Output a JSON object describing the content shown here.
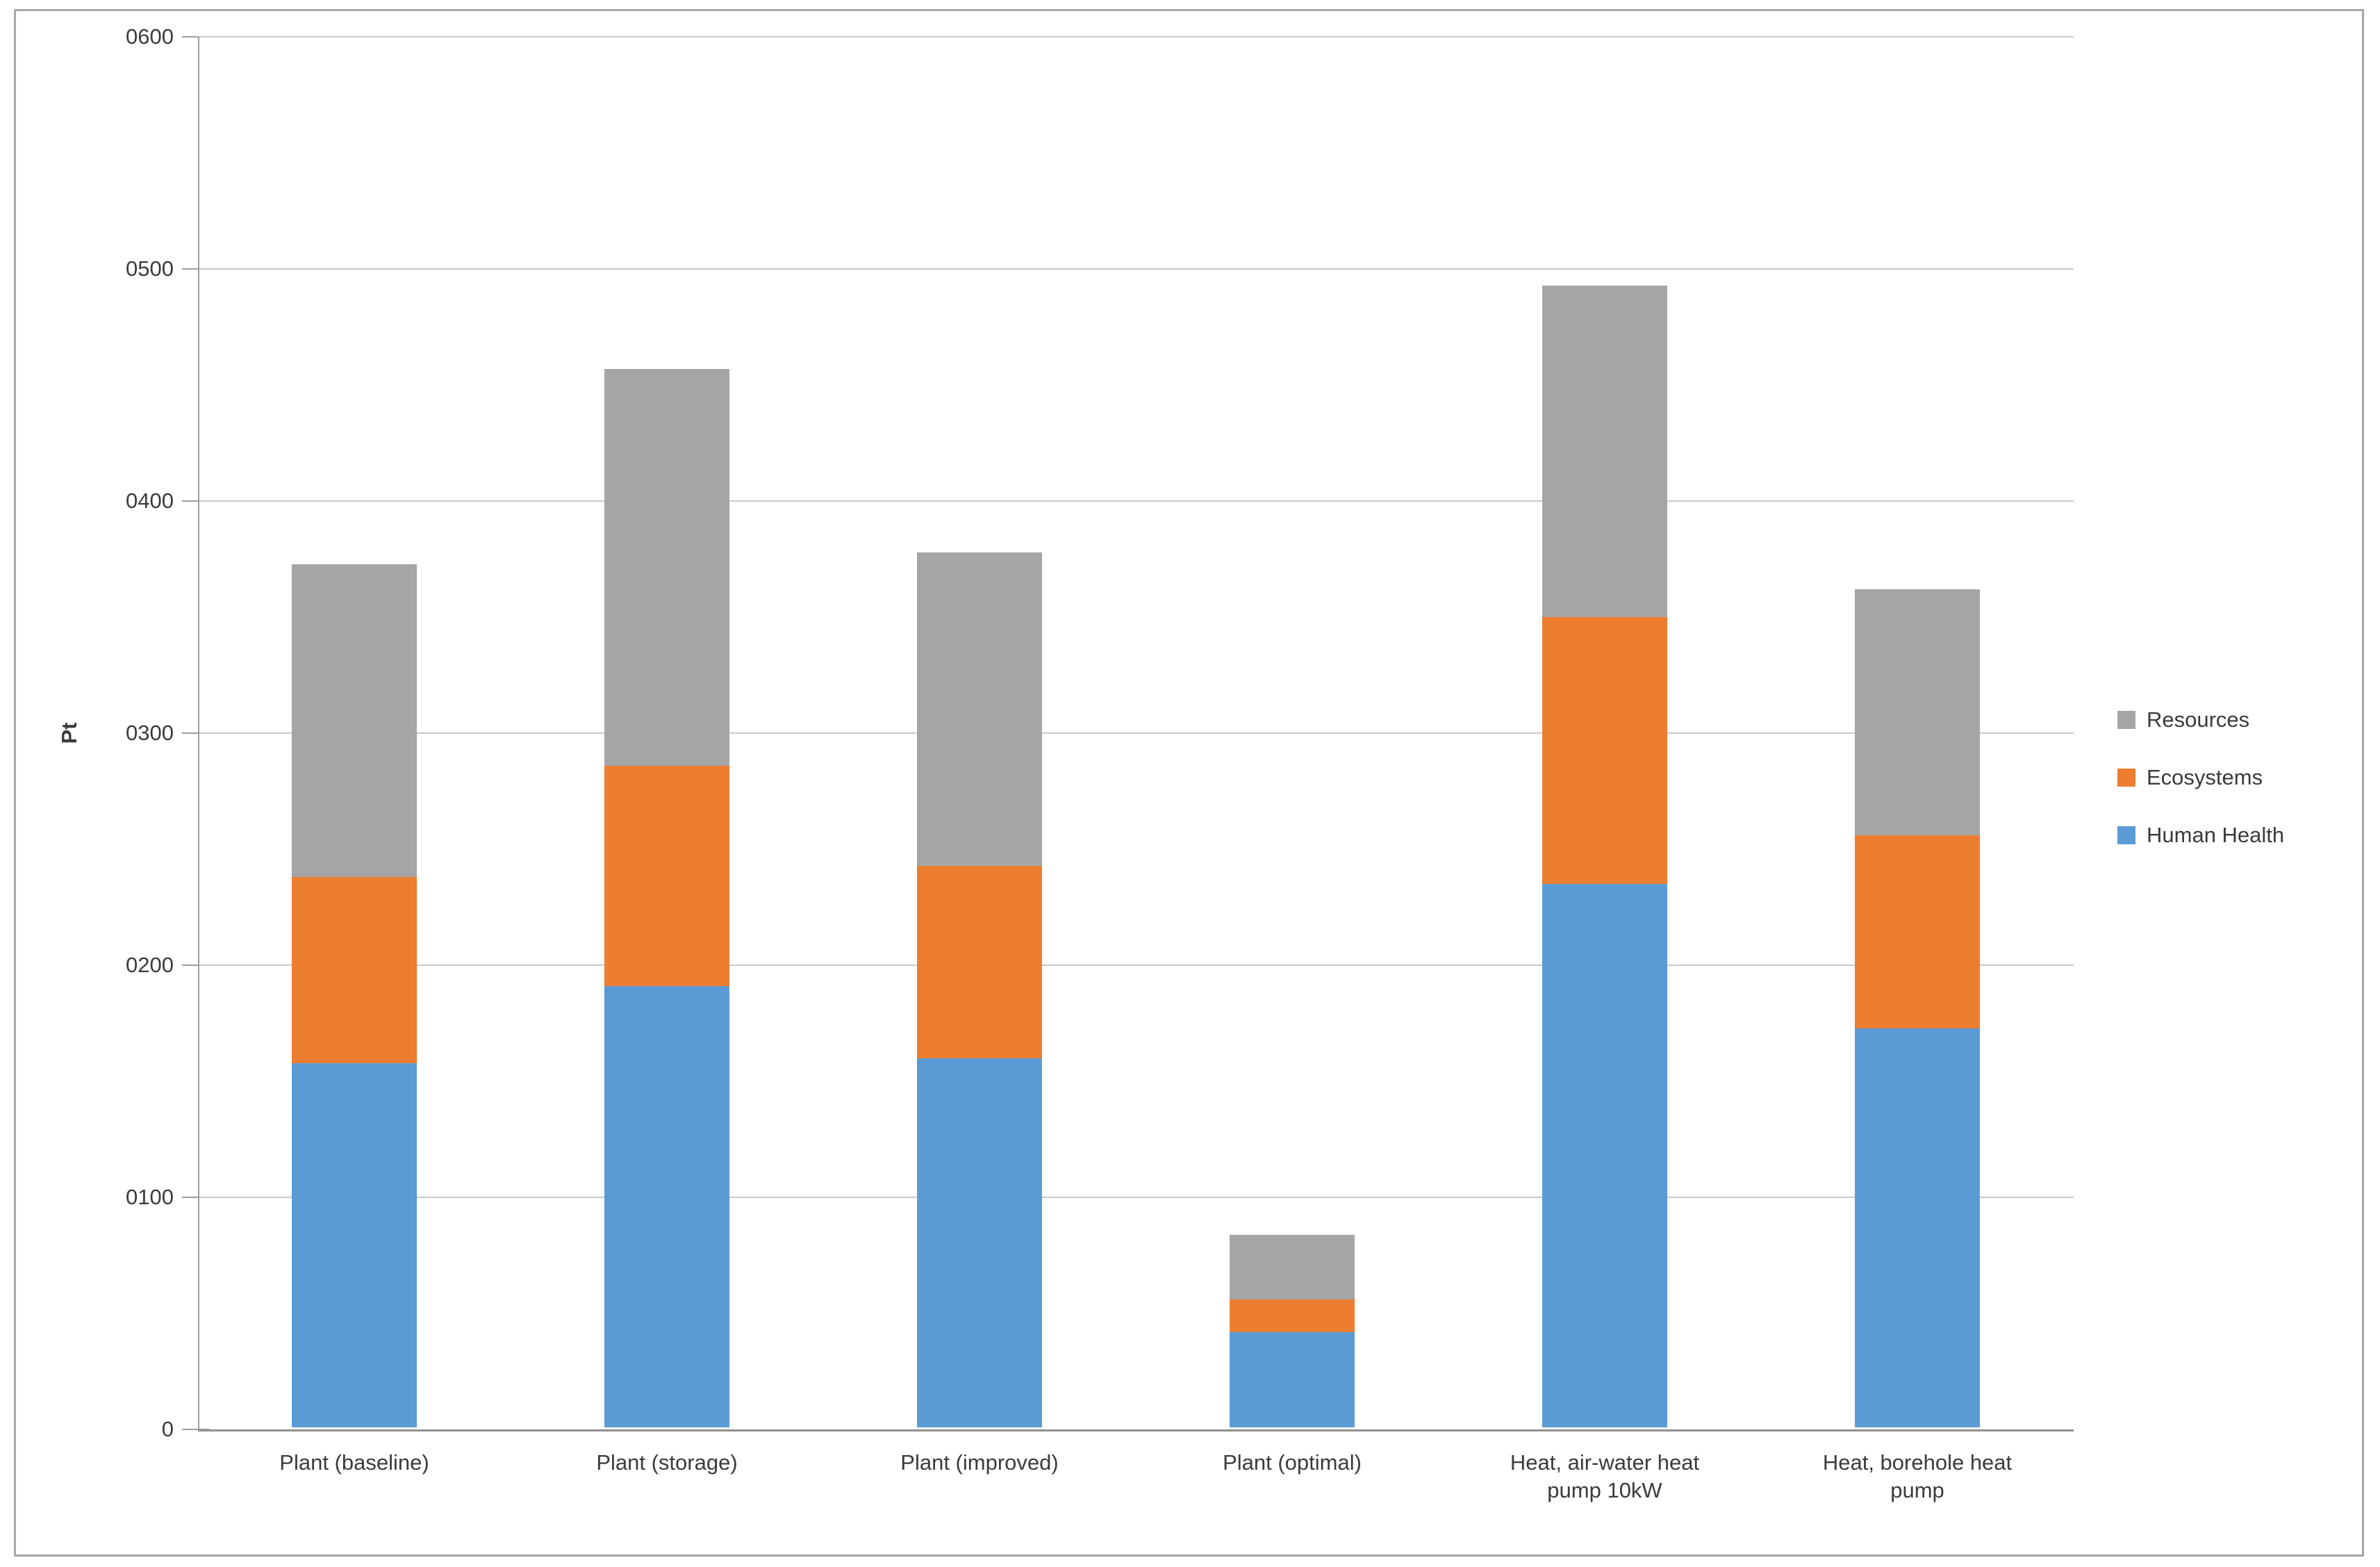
{
  "figure": {
    "background_color": "#ffffff",
    "border_color": "#a6a6a6"
  },
  "chart_data": {
    "type": "bar",
    "stacked": true,
    "title": "",
    "xlabel": "",
    "ylabel": "Pt",
    "ylim": [
      0,
      600
    ],
    "ytick_values": [
      0,
      100,
      200,
      300,
      400,
      500,
      600
    ],
    "ytick_labels": [
      "0",
      "0100",
      "0200",
      "0300",
      "0400",
      "0500",
      "0600"
    ],
    "grid": true,
    "legend_position": "right",
    "categories": [
      "Plant (baseline)",
      "Plant (storage)",
      "Plant (improved)",
      "Plant (optimal)",
      "Heat, air-water heat pump 10kW",
      "Heat, borehole heat pump"
    ],
    "category_label_lines": [
      [
        "Plant (baseline)"
      ],
      [
        "Plant (storage)"
      ],
      [
        "Plant (improved)"
      ],
      [
        "Plant (optimal)"
      ],
      [
        "Heat, air-water heat",
        "pump 10kW"
      ],
      [
        "Heat, borehole heat",
        "pump"
      ]
    ],
    "series": [
      {
        "name": "Human Health",
        "color": "#5B9BD5",
        "values": [
          157,
          190,
          159,
          41,
          234,
          172
        ]
      },
      {
        "name": "Ecosystems",
        "color": "#ED7D31",
        "values": [
          80,
          95,
          83,
          14,
          115,
          83
        ]
      },
      {
        "name": "Resources",
        "color": "#A5A5A5",
        "values": [
          135,
          171,
          135,
          28,
          143,
          106
        ]
      }
    ],
    "stack_totals": [
      372,
      456,
      377,
      83,
      492,
      361
    ],
    "legend_entries": [
      {
        "label": "Resources",
        "color": "#A5A5A5"
      },
      {
        "label": "Ecosystems",
        "color": "#ED7D31"
      },
      {
        "label": "Human Health",
        "color": "#5B9BD5"
      }
    ],
    "colors": {
      "gridline": "#c9c9c9",
      "axis_line": "#9c9c9c",
      "baseline": "#919191",
      "text": "#3b3b3b"
    }
  }
}
